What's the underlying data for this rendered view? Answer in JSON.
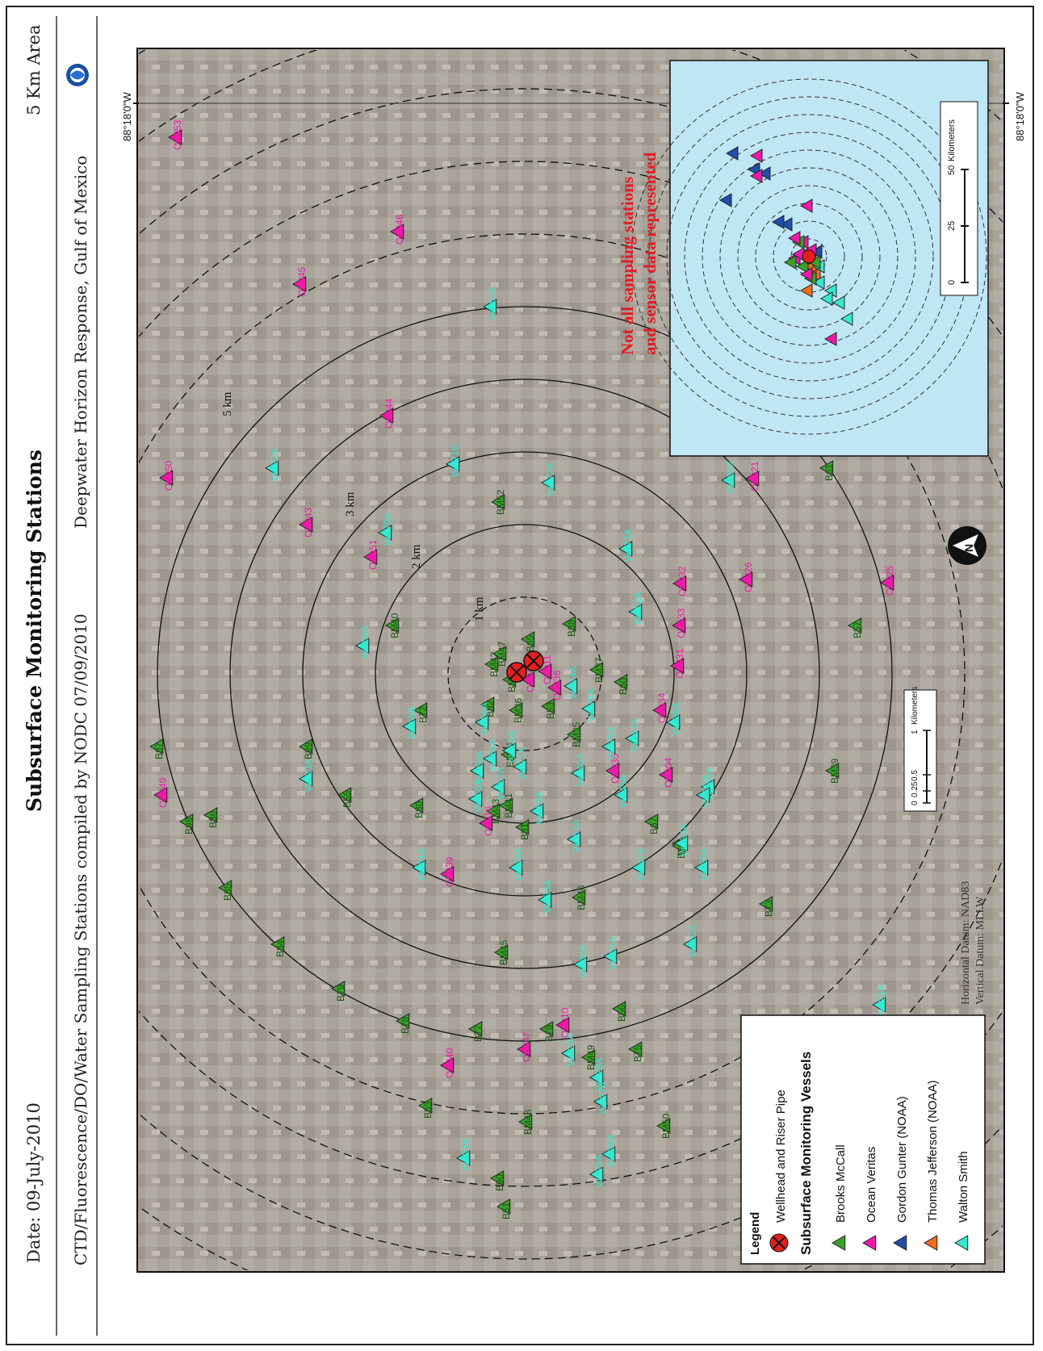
{
  "header": {
    "date": "Date: 09-July-2010",
    "title": "Subsurface Monitoring Stations",
    "area": "5 Km Area",
    "subtitle": "CTD/Fluorescence/DO/Water Sampling Stations compiled by NODC 07/09/2010",
    "response": "Deepwater Horizon Response, Gulf of Mexico"
  },
  "map": {
    "longitude_label": "88°18'0\"W",
    "ring_labels": [
      "1 km",
      "2 km",
      "3 km",
      "5 km"
    ],
    "datum_horizontal": "Horizontal Datum: NAD83",
    "datum_vertical": "Vertical Datum: MLLW",
    "scale": {
      "ticks": [
        "0",
        "0.25",
        "0.5",
        "1"
      ],
      "unit": "Kilometers"
    },
    "north_arrow": "N",
    "colors": {
      "brooks": "#3aa02a",
      "ocean": "#ee1aa8",
      "gunter": "#1f4fa8",
      "jefferson": "#f26a1e",
      "walton": "#35e8d0",
      "well": "#e5201e"
    }
  },
  "stations": {
    "brooks": [
      "B87",
      "B98",
      "B86",
      "B85",
      "B84",
      "B79",
      "B78",
      "B83",
      "B90",
      "B51",
      "B77",
      "BM48",
      "BM45",
      "B76",
      "B56",
      "B75",
      "BM49",
      "BM50",
      "BM46",
      "B81",
      "BM43",
      "BM41",
      "B80",
      "B55",
      "B99",
      "B72",
      "B82",
      "BM42",
      "BM36",
      "B53",
      "BM35",
      "BM44",
      "BM40",
      "B65",
      "B88",
      "BM37",
      "B60",
      "B66",
      "B73",
      "BM39",
      "B57",
      "B61",
      "B67",
      "B69",
      "BM47",
      "BM34",
      "BM52",
      "BM38"
    ],
    "ocean": [
      "OV053",
      "OV046",
      "OV045",
      "OV044",
      "OV050",
      "OV043",
      "OV051",
      "OV049",
      "OV016",
      "OV039",
      "OV040",
      "OV047",
      "OV010",
      "OV048",
      "OV011",
      "OV036",
      "OV034",
      "OV033",
      "OV031",
      "OV032",
      "OV026",
      "OV025",
      "OV021",
      "OV004",
      "OV035"
    ],
    "walton": [
      "WS62A",
      "WS71C",
      "WS70A",
      "WS72A",
      "WS73A",
      "WS33A",
      "WS52A",
      "WS74A",
      "WS69A",
      "WS68B",
      "WS60A",
      "WS76A",
      "WS75A",
      "WS66A",
      "WS77A",
      "WS61A",
      "WS59A",
      "WS58A",
      "WS57A",
      "WS56A",
      "WS55A",
      "WS54A",
      "WS53A",
      "WS48A",
      "WS47A",
      "WS46A",
      "WS45A",
      "WS44A",
      "WS38A",
      "WS37A",
      "WS36A",
      "WS35A",
      "WS34A",
      "WS32A",
      "WS31A",
      "WS30A",
      "WS29A",
      "WS28A",
      "WS27A",
      "WS26A",
      "WS25A",
      "WS24A",
      "WS23A",
      "WS22A",
      "WS21A"
    ]
  },
  "inset": {
    "note_line1": "Not all sampling stations",
    "note_line2": "and sensor data represented",
    "scale": {
      "ticks": [
        "0",
        "25",
        "50"
      ],
      "unit": "Kilometers"
    }
  },
  "legend": {
    "title": "Legend",
    "wellhead": "Wellhead and Riser Pipe",
    "vessels_heading": "Subsurface Monitoring Vessels",
    "items": [
      {
        "label": "Brooks McCall",
        "color": "#3aa02a"
      },
      {
        "label": "Ocean Veritas",
        "color": "#ee1aa8"
      },
      {
        "label": "Gordon Gunter (NOAA)",
        "color": "#1f4fa8"
      },
      {
        "label": "Thomas Jefferson (NOAA)",
        "color": "#f26a1e"
      },
      {
        "label": "Walton Smith",
        "color": "#35e8d0"
      }
    ]
  }
}
